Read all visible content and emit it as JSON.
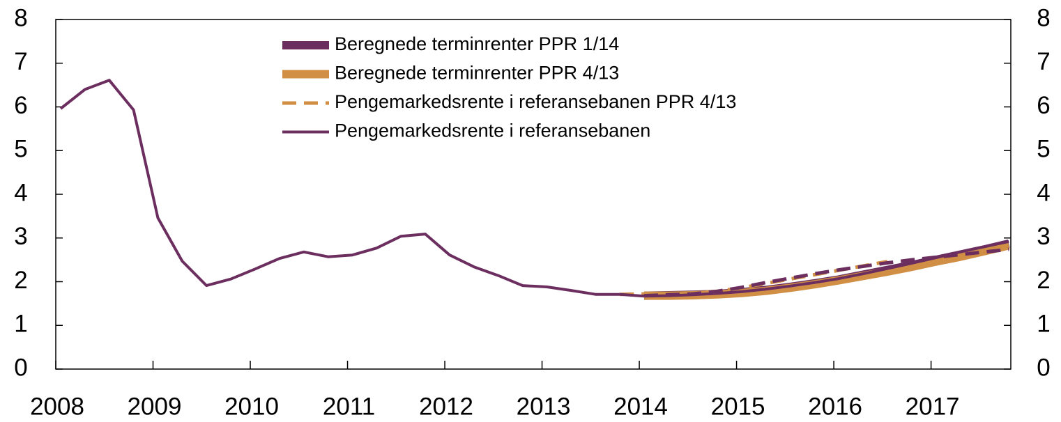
{
  "chart_data": {
    "type": "line",
    "x": [
      2008.05,
      2008.3,
      2008.55,
      2008.8,
      2009.05,
      2009.3,
      2009.55,
      2009.8,
      2010.05,
      2010.3,
      2010.55,
      2010.8,
      2011.05,
      2011.3,
      2011.55,
      2011.8,
      2012.05,
      2012.3,
      2012.55,
      2012.8,
      2013.05,
      2013.3,
      2013.55,
      2013.8,
      2014.05,
      2014.3,
      2014.55,
      2014.8,
      2015.05,
      2015.3,
      2015.55,
      2015.8,
      2016.05,
      2016.3,
      2016.55,
      2016.8,
      2017.05,
      2017.3,
      2017.55,
      2017.8
    ],
    "series": [
      {
        "name": "Beregnede terminrenter PPR 1/14",
        "color": "#6b2e5f",
        "style": "thick",
        "values": [
          null,
          null,
          null,
          null,
          null,
          null,
          null,
          null,
          null,
          null,
          null,
          null,
          null,
          null,
          null,
          null,
          null,
          null,
          null,
          null,
          null,
          null,
          null,
          null,
          1.68,
          1.69,
          1.7,
          1.72,
          1.76,
          1.81,
          1.88,
          1.96,
          2.05,
          2.16,
          2.27,
          2.38,
          2.5,
          2.62,
          2.74,
          2.87
        ]
      },
      {
        "name": "Beregnede terminrenter PPR 4/13",
        "color": "#d08f45",
        "style": "thick",
        "values": [
          null,
          null,
          null,
          null,
          null,
          null,
          null,
          null,
          null,
          null,
          null,
          null,
          null,
          null,
          null,
          null,
          null,
          null,
          null,
          null,
          null,
          null,
          null,
          null,
          1.68,
          1.68,
          1.69,
          1.71,
          1.74,
          1.79,
          1.86,
          1.94,
          2.03,
          2.13,
          2.23,
          2.34,
          2.46,
          2.57,
          2.7,
          2.83
        ]
      },
      {
        "name": "Pengemarkedsrente i referansebanen PPR 4/13",
        "color": "#d08f45",
        "style": "dashed",
        "values": [
          null,
          null,
          null,
          null,
          null,
          null,
          null,
          null,
          null,
          null,
          null,
          null,
          null,
          null,
          null,
          null,
          null,
          null,
          null,
          null,
          null,
          null,
          null,
          1.71,
          1.72,
          1.73,
          1.74,
          1.78,
          1.86,
          1.96,
          2.06,
          2.16,
          2.26,
          2.36,
          2.46,
          null,
          null,
          null,
          null,
          null
        ]
      },
      {
        "name": "Pengemarkedsrente i referansebanen",
        "color": "#6b2e5f",
        "style": "solid",
        "values": [
          5.96,
          6.4,
          6.61,
          5.93,
          3.46,
          2.47,
          1.91,
          2.06,
          2.29,
          2.53,
          2.68,
          2.57,
          2.61,
          2.77,
          3.04,
          3.09,
          2.61,
          2.34,
          2.14,
          1.91,
          1.88,
          1.8,
          1.71,
          1.71,
          1.67,
          1.68,
          1.7,
          1.73,
          1.77,
          1.83,
          1.9,
          1.98,
          2.07,
          2.18,
          2.3,
          2.42,
          2.55,
          2.68,
          2.8,
          2.92
        ]
      },
      {
        "color": "#6b2e5f",
        "style": "dashed",
        "values": [
          null,
          null,
          null,
          null,
          null,
          null,
          null,
          null,
          null,
          null,
          null,
          null,
          null,
          null,
          null,
          null,
          null,
          null,
          null,
          null,
          null,
          null,
          null,
          null,
          1.68,
          1.7,
          1.72,
          1.78,
          1.87,
          1.98,
          2.08,
          2.18,
          2.27,
          2.35,
          2.43,
          2.5,
          2.56,
          2.62,
          2.68,
          2.74
        ]
      }
    ],
    "xlim": [
      2008,
      2017.82
    ],
    "xticks": [
      2008,
      2009,
      2010,
      2011,
      2012,
      2013,
      2014,
      2015,
      2016,
      2017
    ],
    "ylim": [
      0,
      8
    ],
    "yticks": [
      0,
      1,
      2,
      3,
      4,
      5,
      6,
      7,
      8
    ],
    "y2lim": [
      0,
      8
    ],
    "y2ticks": [
      0,
      1,
      2,
      3,
      4,
      5,
      6,
      7,
      8
    ],
    "legend": "top"
  }
}
